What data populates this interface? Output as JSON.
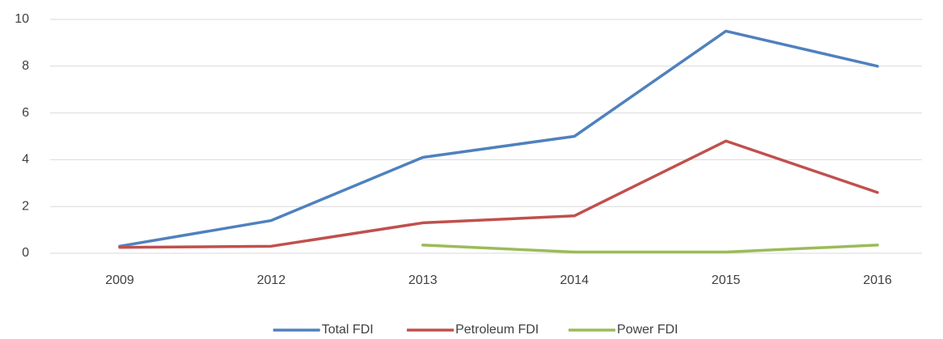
{
  "chart_data": {
    "type": "line",
    "categories": [
      "2009",
      "2012",
      "2013",
      "2014",
      "2015",
      "2016"
    ],
    "series": [
      {
        "name": "Total FDI",
        "color": "#4f81bd",
        "values": [
          0.3,
          1.4,
          4.1,
          5.0,
          9.5,
          8.0
        ]
      },
      {
        "name": "Petroleum FDI",
        "color": "#c0504d",
        "values": [
          0.25,
          0.3,
          1.3,
          1.6,
          4.8,
          2.6
        ]
      },
      {
        "name": "Power FDI",
        "color": "#9bbb59",
        "values": [
          null,
          null,
          0.35,
          0.05,
          0.05,
          0.35
        ]
      }
    ],
    "ylim": [
      0,
      10
    ],
    "yticks": [
      0,
      2,
      4,
      6,
      8,
      10
    ],
    "grid": true,
    "legend": "bottom"
  }
}
